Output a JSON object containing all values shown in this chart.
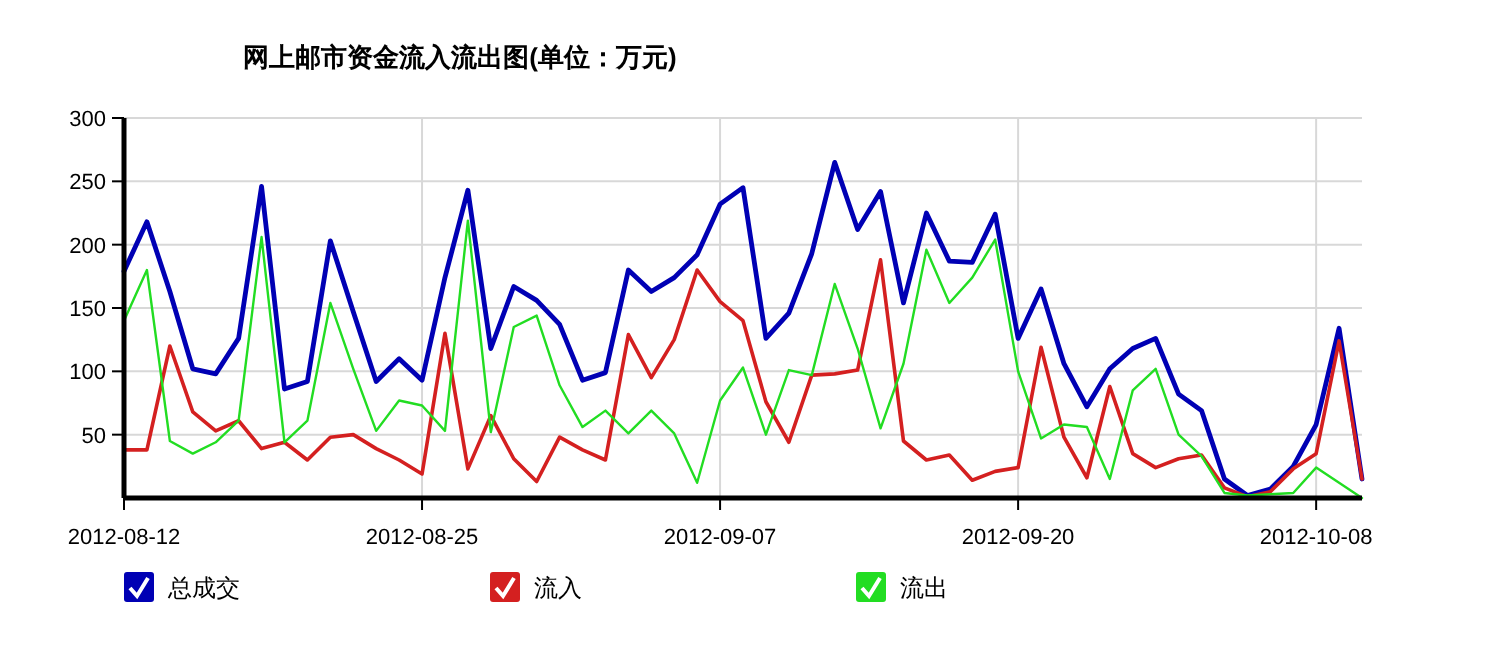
{
  "chart_data": {
    "type": "line",
    "title": "网上邮市资金流入流出图(单位：万元)",
    "categories": [
      "2012-08-12",
      null,
      null,
      null,
      null,
      null,
      null,
      null,
      null,
      null,
      null,
      null,
      null,
      "2012-08-25",
      null,
      null,
      null,
      null,
      null,
      null,
      null,
      null,
      null,
      null,
      null,
      null,
      "2012-09-07",
      null,
      null,
      null,
      null,
      null,
      null,
      null,
      null,
      null,
      null,
      null,
      null,
      "2012-09-20",
      null,
      null,
      null,
      null,
      null,
      null,
      null,
      null,
      null,
      null,
      null,
      null,
      "2012-10-08",
      null,
      null
    ],
    "series": [
      {
        "name": "总成交",
        "color": "#0000b4",
        "values": [
          179,
          218,
          163,
          102,
          98,
          126,
          246,
          86,
          92,
          203,
          147,
          92,
          110,
          93,
          174,
          243,
          118,
          167,
          156,
          137,
          93,
          99,
          180,
          163,
          174,
          192,
          232,
          245,
          126,
          146,
          193,
          265,
          212,
          242,
          154,
          225,
          187,
          186,
          224,
          126,
          165,
          106,
          72,
          102,
          118,
          126,
          82,
          69,
          15,
          2,
          7,
          25,
          58,
          134,
          15
        ]
      },
      {
        "name": "流入",
        "color": "#d42020",
        "values": [
          38,
          38,
          120,
          68,
          53,
          61,
          39,
          44,
          30,
          48,
          50,
          39,
          30,
          19,
          130,
          23,
          65,
          31,
          13,
          48,
          38,
          30,
          129,
          95,
          125,
          180,
          155,
          140,
          76,
          44,
          97,
          98,
          101,
          188,
          45,
          30,
          34,
          14,
          21,
          24,
          119,
          48,
          16,
          88,
          35,
          24,
          31,
          34,
          8,
          1,
          5,
          23,
          35,
          124,
          15
        ]
      },
      {
        "name": "流出",
        "color": "#22dd22",
        "values": [
          140,
          180,
          45,
          35,
          44,
          61,
          206,
          44,
          61,
          154,
          102,
          53,
          77,
          73,
          53,
          219,
          52,
          135,
          144,
          89,
          56,
          69,
          51,
          69,
          51,
          12,
          77,
          103,
          50,
          101,
          97,
          169,
          118,
          55,
          106,
          196,
          154,
          174,
          204,
          100,
          47,
          58,
          56,
          15,
          85,
          102,
          50,
          33,
          4,
          2,
          3,
          4,
          24,
          12,
          0
        ]
      }
    ],
    "ylim": [
      0,
      300
    ],
    "yticks": [
      50,
      100,
      150,
      200,
      250,
      300
    ],
    "grid": true,
    "legend": "bottom left",
    "marker": "none",
    "line_style": "solid"
  }
}
